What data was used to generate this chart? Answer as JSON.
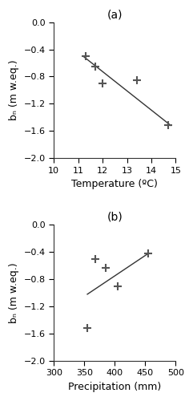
{
  "panel_a": {
    "label": "(a)",
    "x_data": [
      11.3,
      11.7,
      12.0,
      13.4,
      14.7
    ],
    "y_data": [
      -0.5,
      -0.65,
      -0.9,
      -0.85,
      -1.52
    ],
    "line_x": [
      11.2,
      14.8
    ],
    "line_y": [
      -0.5,
      -1.52
    ],
    "xlabel": "Temperature (ºC)",
    "ylabel": "bₙ (m w.eq.)",
    "xlim": [
      10,
      15
    ],
    "ylim": [
      -2.0,
      0.0
    ],
    "xticks": [
      10,
      11,
      12,
      13,
      14,
      15
    ],
    "yticks": [
      0.0,
      -0.4,
      -0.8,
      -1.2,
      -1.6,
      -2.0
    ]
  },
  "panel_b": {
    "label": "(b)",
    "x_data": [
      355,
      368,
      385,
      405,
      455
    ],
    "y_data": [
      -1.52,
      -0.5,
      -0.63,
      -0.9,
      -0.42
    ],
    "line_x": [
      355,
      455
    ],
    "line_y": [
      -1.02,
      -0.42
    ],
    "xlabel": "Precipitation (mm)",
    "ylabel": "bₙ (m w.eq.)",
    "xlim": [
      300,
      500
    ],
    "ylim": [
      -2.0,
      0.0
    ],
    "xticks": [
      300,
      350,
      400,
      450,
      500
    ],
    "yticks": [
      0.0,
      -0.4,
      -0.8,
      -1.2,
      -1.6,
      -2.0
    ]
  },
  "marker": "+",
  "marker_size": 7,
  "marker_color": "#555555",
  "line_color": "#333333",
  "line_width": 1.0,
  "bg_color": "#ffffff",
  "label_fontsize": 9,
  "tick_fontsize": 8,
  "panel_label_fontsize": 10
}
